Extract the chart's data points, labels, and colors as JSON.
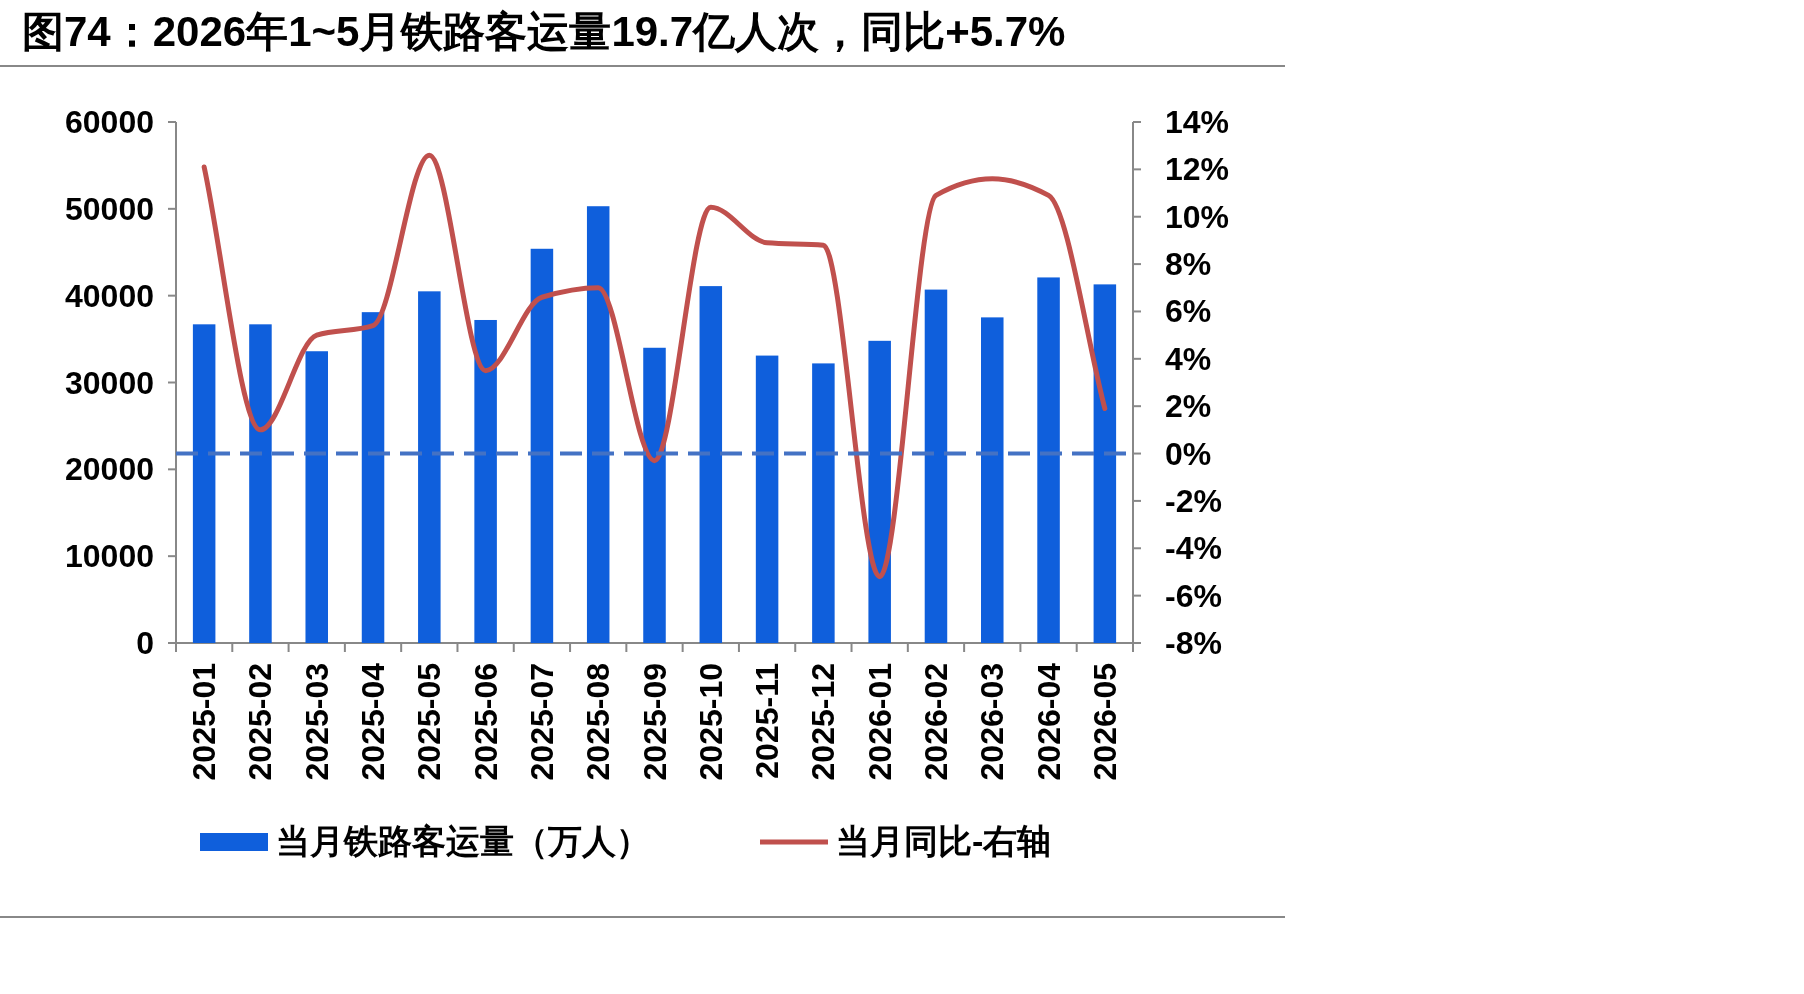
{
  "chart_data": {
    "type": "bar",
    "title": "图74：2026年1~5月铁路客运量19.7亿人次，同比+5.7%",
    "categories": [
      "2025-01",
      "2025-02",
      "2025-03",
      "2025-04",
      "2025-05",
      "2025-06",
      "2025-07",
      "2025-08",
      "2025-09",
      "2025-10",
      "2025-11",
      "2025-12",
      "2026-01",
      "2026-02",
      "2026-03",
      "2026-04",
      "2026-05"
    ],
    "series": [
      {
        "name": "当月铁路客运量（万人）",
        "color": "#0f5fdc",
        "values": [
          36700,
          36700,
          33600,
          38100,
          40500,
          37200,
          45400,
          50300,
          34000,
          41100,
          33100,
          32200,
          34800,
          40700,
          37500,
          42100,
          41300
        ]
      },
      {
        "name": "当月同比-右轴",
        "type": "line",
        "axis": "y2",
        "color": "#c0504d",
        "values": [
          12.1,
          1.0,
          5.0,
          5.4,
          12.6,
          3.5,
          6.6,
          7.0,
          -0.3,
          10.4,
          8.9,
          8.8,
          -5.2,
          10.9,
          11.6,
          10.9,
          1.9
        ]
      }
    ],
    "ylim": [
      0,
      60000
    ],
    "yticks": [
      0,
      10000,
      20000,
      30000,
      40000,
      50000,
      60000
    ],
    "y2lim": [
      -8,
      14
    ],
    "y2ticks": [
      {
        "value": -8,
        "label": "-8%"
      },
      {
        "value": -6,
        "label": "-6%"
      },
      {
        "value": -4,
        "label": "-4%"
      },
      {
        "value": -2,
        "label": "-2%"
      },
      {
        "value": 0,
        "label": "0%"
      },
      {
        "value": 2,
        "label": "2%"
      },
      {
        "value": 4,
        "label": "4%"
      },
      {
        "value": 6,
        "label": "6%"
      },
      {
        "value": 8,
        "label": "8%"
      },
      {
        "value": 10,
        "label": "10%"
      },
      {
        "value": 12,
        "label": "12%"
      },
      {
        "value": 14,
        "label": "14%"
      }
    ],
    "ref_lines": [
      {
        "axis": "y2",
        "value": 0,
        "color": "#4472c4",
        "line_style": "dashed"
      }
    ],
    "legend": "bottom"
  }
}
